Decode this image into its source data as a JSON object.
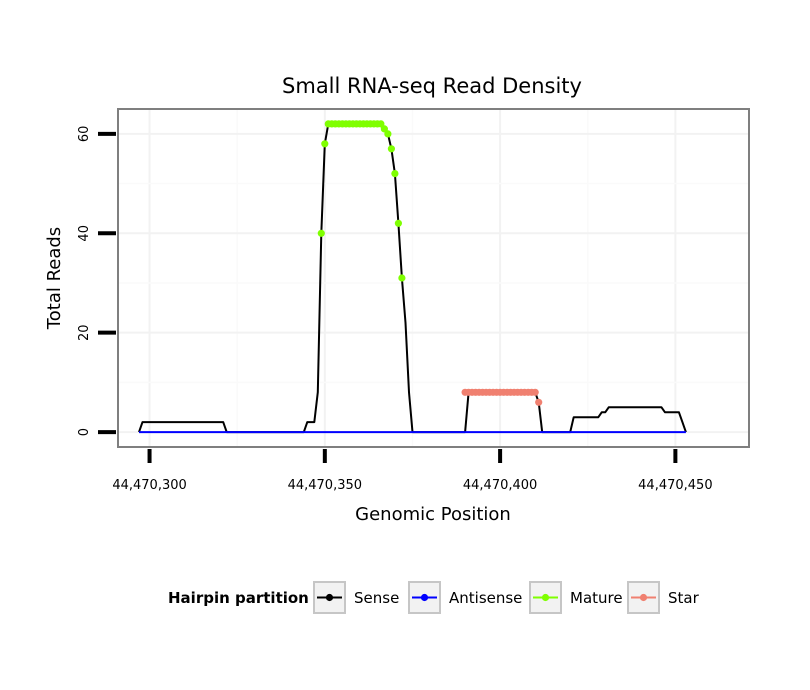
{
  "chart_data": {
    "type": "line",
    "title": "Small RNA-seq Read Density",
    "xlabel": "Genomic Position",
    "ylabel": "Total Reads",
    "xlim": [
      44470291,
      44470471
    ],
    "ylim": [
      -3,
      65
    ],
    "xticks": [
      44470300,
      44470350,
      44470400,
      44470450
    ],
    "xtick_labels": [
      "44,470,300",
      "44,470,350",
      "44,470,400",
      "44,470,450"
    ],
    "yticks": [
      0,
      20,
      40,
      60
    ],
    "ytick_labels": [
      "0",
      "20",
      "40",
      "60"
    ],
    "grid": true,
    "legend": {
      "title": "Hairpin partition",
      "position": "bottom",
      "entries": [
        {
          "label": "Sense",
          "color": "#000000"
        },
        {
          "label": "Antisense",
          "color": "#0000ff"
        },
        {
          "label": "Mature",
          "color": "#7fff00"
        },
        {
          "label": "Star",
          "color": "#f08070"
        }
      ]
    },
    "series": [
      {
        "name": "Sense",
        "color": "#000000",
        "x": [
          44470297,
          44470298,
          44470299,
          44470321,
          44470322,
          44470344,
          44470345,
          44470347,
          44470348,
          44470349,
          44470350,
          44470351,
          44470352,
          44470353,
          44470354,
          44470366,
          44470368,
          44470369,
          44470370,
          44470371,
          44470372,
          44470373,
          44470374,
          44470375,
          44470376,
          44470390,
          44470391,
          44470410,
          44470411,
          44470412,
          44470420,
          44470421,
          44470428,
          44470429,
          44470430,
          44470431,
          44470446,
          44470447,
          44470451,
          44470452,
          44470453
        ],
        "y": [
          0,
          2,
          2,
          2,
          0,
          0,
          2,
          2,
          8,
          40,
          58,
          62,
          62,
          62,
          62,
          62,
          60,
          57,
          52,
          42,
          31,
          22,
          8,
          0,
          0,
          0,
          8,
          8,
          6,
          0,
          0,
          3,
          3,
          4,
          4,
          5,
          5,
          4,
          4,
          2,
          0
        ]
      },
      {
        "name": "Antisense",
        "color": "#0000ff",
        "x": [
          44470297,
          44470453
        ],
        "y": [
          0,
          0
        ]
      },
      {
        "name": "Mature",
        "color": "#7fff00",
        "x": [
          44470349,
          44470350,
          44470351,
          44470352,
          44470353,
          44470354,
          44470355,
          44470356,
          44470357,
          44470358,
          44470359,
          44470360,
          44470361,
          44470362,
          44470363,
          44470364,
          44470365,
          44470366,
          44470367,
          44470368,
          44470369,
          44470370,
          44470371,
          44470372
        ],
        "y": [
          40,
          58,
          62,
          62,
          62,
          62,
          62,
          62,
          62,
          62,
          62,
          62,
          62,
          62,
          62,
          62,
          62,
          62,
          61,
          60,
          57,
          52,
          42,
          31
        ]
      },
      {
        "name": "Star",
        "color": "#f08070",
        "x": [
          44470390,
          44470391,
          44470392,
          44470393,
          44470394,
          44470395,
          44470396,
          44470397,
          44470398,
          44470399,
          44470400,
          44470401,
          44470402,
          44470403,
          44470404,
          44470405,
          44470406,
          44470407,
          44470408,
          44470409,
          44470410,
          44470411
        ],
        "y": [
          8,
          8,
          8,
          8,
          8,
          8,
          8,
          8,
          8,
          8,
          8,
          8,
          8,
          8,
          8,
          8,
          8,
          8,
          8,
          8,
          8,
          6
        ]
      }
    ]
  }
}
